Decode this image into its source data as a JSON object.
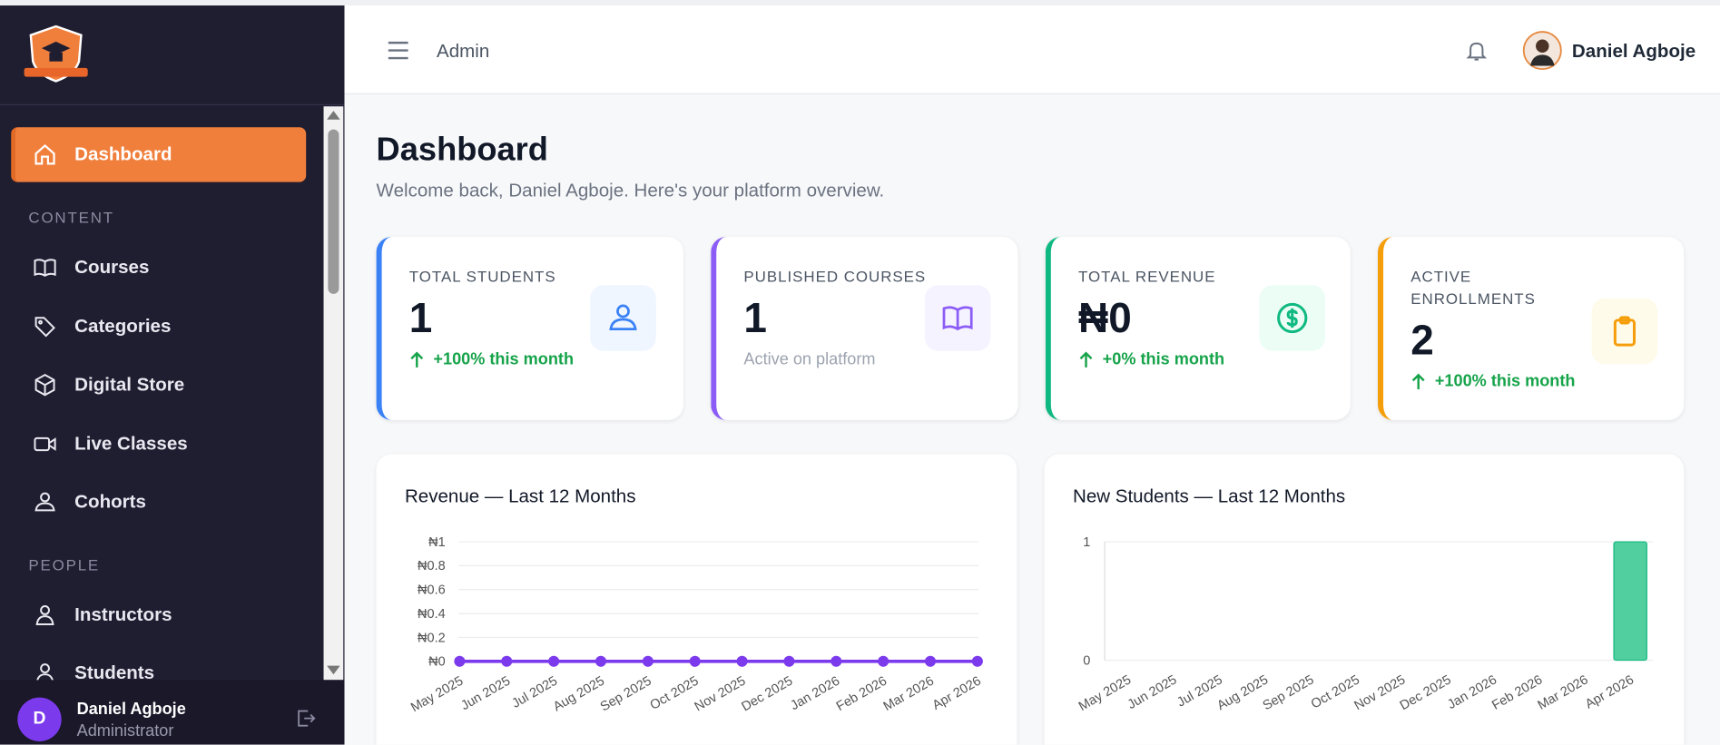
{
  "sidebar": {
    "dashboard": "Dashboard",
    "groups": [
      {
        "heading": "CONTENT",
        "items": [
          "Courses",
          "Categories",
          "Digital Store",
          "Live Classes",
          "Cohorts"
        ]
      },
      {
        "heading": "PEOPLE",
        "items": [
          "Instructors",
          "Students"
        ]
      }
    ],
    "user": {
      "initial": "D",
      "name": "Daniel Agboje",
      "role": "Administrator"
    }
  },
  "header": {
    "section": "Admin",
    "user": "Daniel Agboje"
  },
  "page": {
    "title": "Dashboard",
    "subtitle": "Welcome back, Daniel Agboje. Here's your platform overview."
  },
  "stats": [
    {
      "label": "TOTAL STUDENTS",
      "value": "1",
      "note": "+100% this month"
    },
    {
      "label": "PUBLISHED COURSES",
      "value": "1",
      "note": "Active on platform"
    },
    {
      "label": "TOTAL REVENUE",
      "value": "₦0",
      "note": "+0% this month"
    },
    {
      "label": "ACTIVE ENROLLMENTS",
      "value": "2",
      "note": "+100% this month"
    }
  ],
  "chart_data": [
    {
      "type": "line",
      "title": "Revenue — Last 12 Months",
      "categories": [
        "May 2025",
        "Jun 2025",
        "Jul 2025",
        "Aug 2025",
        "Sep 2025",
        "Oct 2025",
        "Nov 2025",
        "Dec 2025",
        "Jan 2026",
        "Feb 2026",
        "Mar 2026",
        "Apr 2026"
      ],
      "values": [
        0,
        0,
        0,
        0,
        0,
        0,
        0,
        0,
        0,
        0,
        0,
        0
      ],
      "color": "#7c3aed",
      "ylim": [
        0,
        1
      ],
      "yticks": [
        {
          "value": 0,
          "label": "₦0"
        },
        {
          "value": 0.2,
          "label": "₦0.2"
        },
        {
          "value": 0.4,
          "label": "₦0.4"
        },
        {
          "value": 0.6,
          "label": "₦0.6"
        },
        {
          "value": 0.8,
          "label": "₦0.8"
        },
        {
          "value": 1,
          "label": "₦1"
        }
      ],
      "grid": true
    },
    {
      "type": "bar",
      "title": "New Students — Last 12 Months",
      "categories": [
        "May 2025",
        "Jun 2025",
        "Jul 2025",
        "Aug 2025",
        "Sep 2025",
        "Oct 2025",
        "Nov 2025",
        "Dec 2025",
        "Jan 2026",
        "Feb 2026",
        "Mar 2026",
        "Apr 2026"
      ],
      "values": [
        0,
        0,
        0,
        0,
        0,
        0,
        0,
        0,
        0,
        0,
        0,
        1
      ],
      "color": "#52cf9f",
      "ylim": [
        0,
        1
      ],
      "yticks": [
        0,
        1
      ],
      "grid": true
    }
  ]
}
